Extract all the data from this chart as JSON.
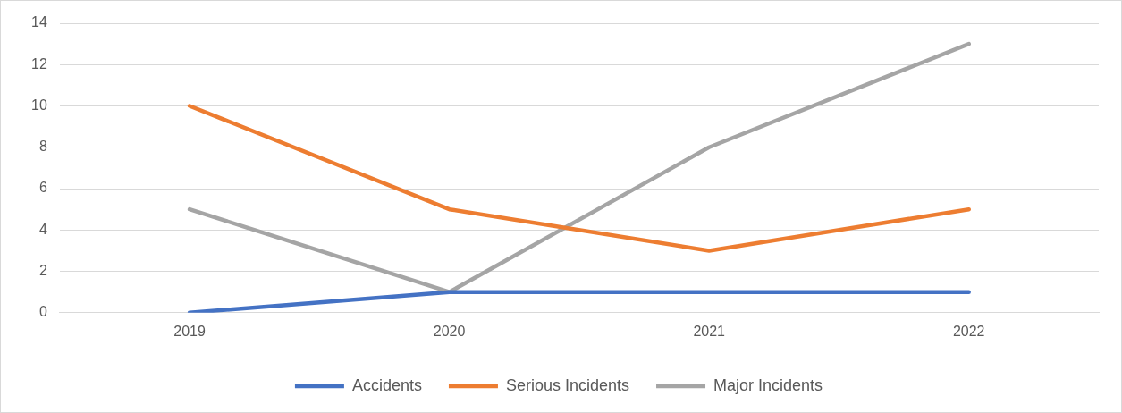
{
  "chart_data": {
    "type": "line",
    "categories": [
      "2019",
      "2020",
      "2021",
      "2022"
    ],
    "series": [
      {
        "name": "Accidents",
        "color": "#4472c4",
        "values": [
          0,
          1,
          1,
          1
        ]
      },
      {
        "name": "Serious Incidents",
        "color": "#ed7d31",
        "values": [
          10,
          5,
          3,
          5
        ]
      },
      {
        "name": "Major Incidents",
        "color": "#a5a5a5",
        "values": [
          5,
          1,
          8,
          13
        ]
      }
    ],
    "ylim": [
      0,
      14
    ],
    "yticks": [
      0,
      2,
      4,
      6,
      8,
      10,
      12,
      14
    ],
    "grid": "y",
    "legend": "bottom",
    "marker": "none",
    "line_style": "solid"
  }
}
